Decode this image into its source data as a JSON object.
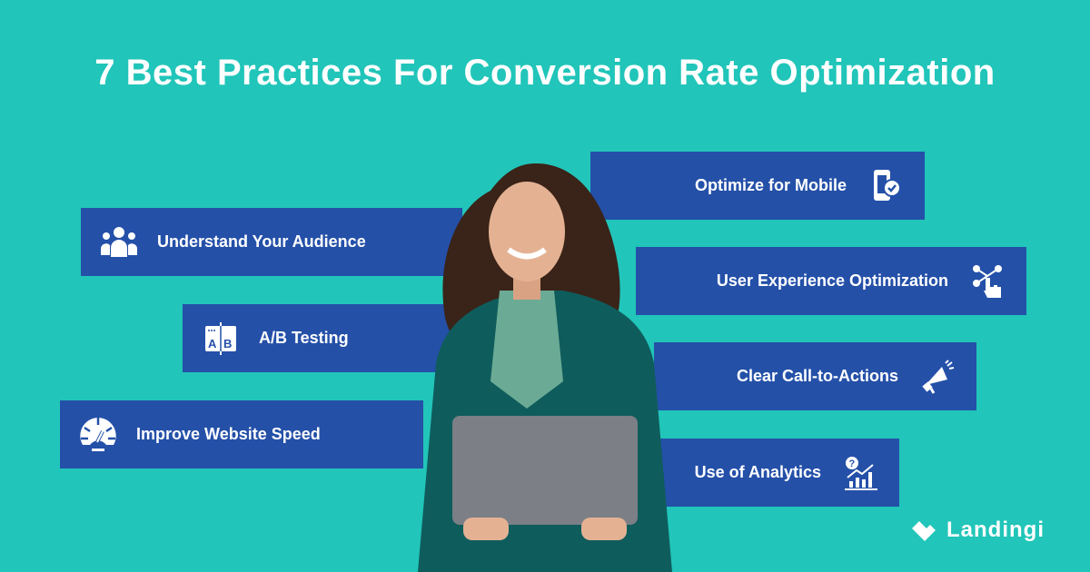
{
  "title": "7 Best Practices For Conversion Rate Optimization",
  "colors": {
    "background": "#21c5b9",
    "box": "#2450a8",
    "text": "#ffffff"
  },
  "practices": [
    {
      "label": "Optimize for Mobile",
      "icon": "mobile-check-icon"
    },
    {
      "label": "Understand Your Audience",
      "icon": "users-icon"
    },
    {
      "label": "User Experience Optimization",
      "icon": "hand-pointer-network-icon"
    },
    {
      "label": "A/B Testing",
      "icon": "ab-test-icon"
    },
    {
      "label": "Clear Call-to-Actions",
      "icon": "megaphone-icon"
    },
    {
      "label": "Improve Website Speed",
      "icon": "speedometer-icon"
    },
    {
      "label": "Use of Analytics",
      "icon": "analytics-chart-icon"
    }
  ],
  "logo": {
    "text": "Landingi"
  }
}
